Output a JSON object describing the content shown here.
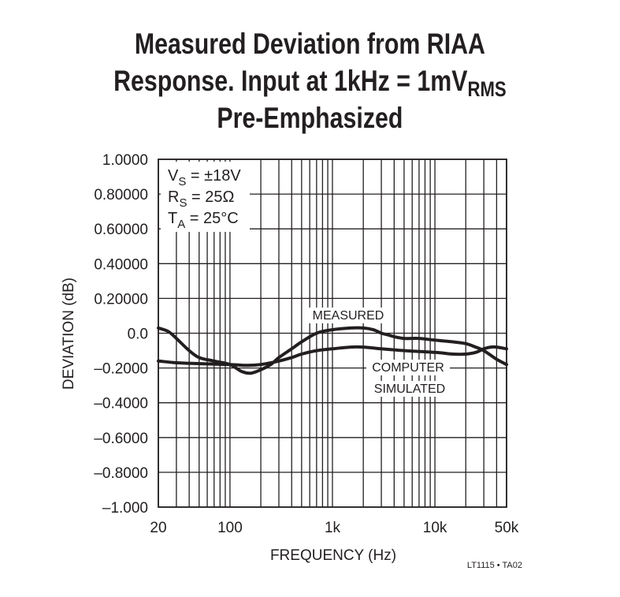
{
  "title": {
    "line1": "Measured Deviation from RIAA",
    "line2_pre": "Response. Input at 1kHz = 1mV",
    "line2_sub": "RMS",
    "line3": "Pre-Emphasized"
  },
  "conditions": [
    {
      "main": "V",
      "sub": "S",
      "rest": " = ±18V"
    },
    {
      "main": "R",
      "sub": "S",
      "rest": " = 25Ω"
    },
    {
      "main": "T",
      "sub": "A",
      "rest": " = 25°C"
    }
  ],
  "figure_ref": "LT1115 • TA02",
  "colors": {
    "line": "#231f20",
    "grid": "#231f20",
    "background": "#ffffff"
  },
  "chart_data": {
    "type": "line",
    "xlabel": "FREQUENCY (Hz)",
    "ylabel": "DEVIATION (dB)",
    "xscale": "log",
    "xlim": [
      20,
      50000
    ],
    "ylim": [
      -1.0,
      1.0
    ],
    "grid": true,
    "x_tick_values": [
      20,
      100,
      1000,
      10000,
      50000
    ],
    "x_tick_labels": [
      "20",
      "100",
      "1k",
      "10k",
      "50k"
    ],
    "y_tick_values": [
      1.0,
      0.8,
      0.6,
      0.4,
      0.2,
      0.0,
      -0.2,
      -0.4,
      -0.6,
      -0.8,
      -1.0
    ],
    "y_tick_labels": [
      "1.0000",
      "0.80000",
      "0.60000",
      "0.40000",
      "0.20000",
      "0.0",
      "–0.2000",
      "–0.4000",
      "–0.6000",
      "–0.8000",
      "–1.000"
    ],
    "series": [
      {
        "name": "MEASURED",
        "x": [
          20,
          25,
          30,
          40,
          50,
          70,
          100,
          130,
          160,
          200,
          250,
          300,
          400,
          500,
          700,
          1000,
          1500,
          2000,
          2500,
          3000,
          3500,
          4000,
          5000,
          7000,
          10000,
          15000,
          20000,
          25000,
          30000,
          40000,
          50000
        ],
        "y": [
          0.03,
          0.01,
          -0.03,
          -0.1,
          -0.14,
          -0.16,
          -0.18,
          -0.22,
          -0.23,
          -0.21,
          -0.18,
          -0.14,
          -0.09,
          -0.05,
          0.0,
          0.02,
          0.03,
          0.03,
          0.02,
          0.0,
          -0.01,
          -0.02,
          -0.03,
          -0.03,
          -0.04,
          -0.05,
          -0.06,
          -0.08,
          -0.1,
          -0.15,
          -0.18
        ]
      },
      {
        "name": "COMPUTER SIMULATED",
        "x": [
          20,
          30,
          50,
          100,
          150,
          200,
          300,
          400,
          500,
          700,
          1000,
          1500,
          2000,
          3000,
          5000,
          10000,
          15000,
          20000,
          25000,
          30000,
          35000,
          40000,
          50000
        ],
        "y": [
          -0.16,
          -0.17,
          -0.175,
          -0.18,
          -0.185,
          -0.18,
          -0.16,
          -0.14,
          -0.12,
          -0.1,
          -0.09,
          -0.08,
          -0.08,
          -0.09,
          -0.1,
          -0.11,
          -0.12,
          -0.12,
          -0.11,
          -0.09,
          -0.08,
          -0.08,
          -0.09
        ]
      }
    ],
    "annotations": [
      "MEASURED",
      "COMPUTER",
      "SIMULATED"
    ]
  }
}
